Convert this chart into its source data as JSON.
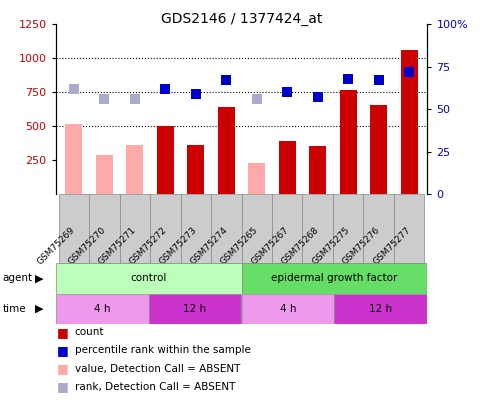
{
  "title": "GDS2146 / 1377424_at",
  "samples": [
    "GSM75269",
    "GSM75270",
    "GSM75271",
    "GSM75272",
    "GSM75273",
    "GSM75274",
    "GSM75265",
    "GSM75267",
    "GSM75268",
    "GSM75275",
    "GSM75276",
    "GSM75277"
  ],
  "bar_values": [
    520,
    290,
    360,
    500,
    360,
    640,
    230,
    390,
    355,
    770,
    660,
    1060
  ],
  "bar_absent": [
    true,
    true,
    true,
    false,
    false,
    false,
    true,
    false,
    false,
    false,
    false,
    false
  ],
  "rank_values": [
    62,
    56,
    56,
    62,
    59,
    67,
    56,
    60,
    57,
    68,
    67,
    72
  ],
  "rank_absent": [
    true,
    true,
    true,
    false,
    false,
    false,
    true,
    false,
    false,
    false,
    false,
    false
  ],
  "ylim_left": [
    0,
    1250
  ],
  "ylim_right": [
    0,
    100
  ],
  "yticks_left": [
    250,
    500,
    750,
    1000,
    1250
  ],
  "yticks_right": [
    0,
    25,
    50,
    75,
    100
  ],
  "bar_color_normal": "#cc0000",
  "bar_color_absent": "#ffaaaa",
  "rank_color_normal": "#0000cc",
  "rank_color_absent": "#aaaacc",
  "agent_row": [
    {
      "label": "control",
      "start": 0,
      "end": 6,
      "color": "#bbffbb"
    },
    {
      "label": "epidermal growth factor",
      "start": 6,
      "end": 12,
      "color": "#66dd66"
    }
  ],
  "time_row": [
    {
      "label": "4 h",
      "start": 0,
      "end": 3,
      "color": "#ee99ee"
    },
    {
      "label": "12 h",
      "start": 3,
      "end": 6,
      "color": "#cc33cc"
    },
    {
      "label": "4 h",
      "start": 6,
      "end": 9,
      "color": "#ee99ee"
    },
    {
      "label": "12 h",
      "start": 9,
      "end": 12,
      "color": "#cc33cc"
    }
  ],
  "legend_items": [
    {
      "label": "count",
      "color": "#cc0000"
    },
    {
      "label": "percentile rank within the sample",
      "color": "#0000cc"
    },
    {
      "label": "value, Detection Call = ABSENT",
      "color": "#ffaaaa"
    },
    {
      "label": "rank, Detection Call = ABSENT",
      "color": "#aaaacc"
    }
  ],
  "left_axis_color": "#cc0000",
  "right_axis_color": "#0000cc",
  "bar_width": 0.55,
  "dot_size": 45,
  "sample_bg_color": "#cccccc",
  "sample_border_color": "#888888"
}
